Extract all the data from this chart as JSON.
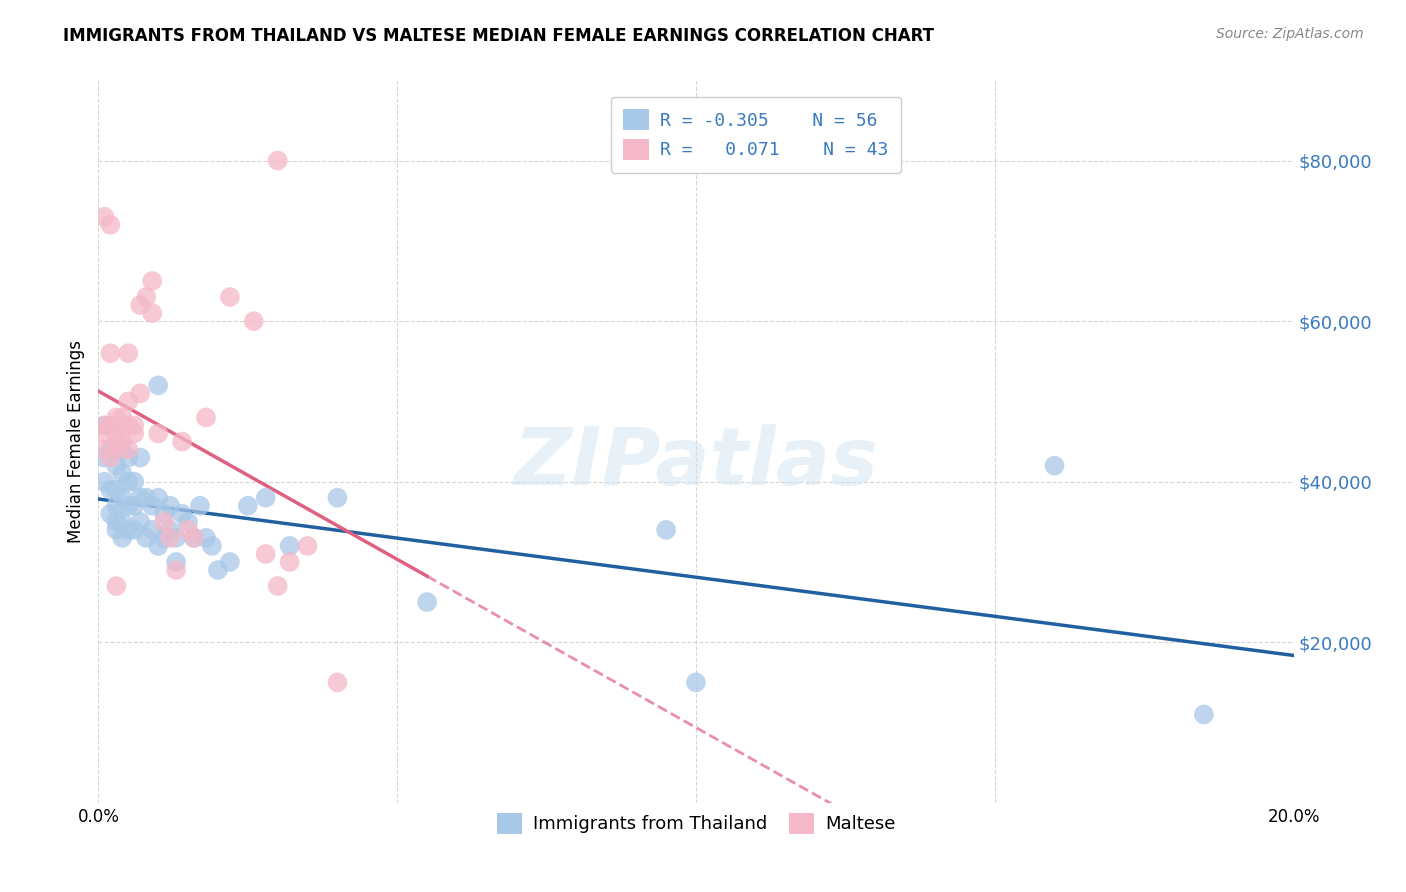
{
  "title": "IMMIGRANTS FROM THAILAND VS MALTESE MEDIAN FEMALE EARNINGS CORRELATION CHART",
  "source": "Source: ZipAtlas.com",
  "ylabel": "Median Female Earnings",
  "xlim": [
    0.0,
    0.2
  ],
  "ylim": [
    0,
    90000
  ],
  "yticks": [
    20000,
    40000,
    60000,
    80000
  ],
  "ytick_labels": [
    "$20,000",
    "$40,000",
    "$60,000",
    "$80,000"
  ],
  "xticks": [
    0.0,
    0.05,
    0.1,
    0.15,
    0.2
  ],
  "xtick_labels": [
    "0.0%",
    "",
    "",
    "",
    "20.0%"
  ],
  "color_blue": "#a8c8e8",
  "color_pink": "#f4b8c8",
  "color_blue_text": "#3a7abf",
  "trendline_blue": "#2060a0",
  "trendline_pink": "#e06080",
  "watermark": "ZIPatlas",
  "blue_points_x": [
    0.001,
    0.001,
    0.001,
    0.002,
    0.002,
    0.002,
    0.003,
    0.003,
    0.003,
    0.003,
    0.003,
    0.004,
    0.004,
    0.004,
    0.004,
    0.004,
    0.005,
    0.005,
    0.005,
    0.005,
    0.006,
    0.006,
    0.006,
    0.007,
    0.007,
    0.007,
    0.008,
    0.008,
    0.009,
    0.009,
    0.01,
    0.01,
    0.01,
    0.011,
    0.011,
    0.012,
    0.012,
    0.013,
    0.013,
    0.014,
    0.015,
    0.016,
    0.017,
    0.018,
    0.019,
    0.02,
    0.022,
    0.025,
    0.028,
    0.032,
    0.04,
    0.055,
    0.095,
    0.1,
    0.16,
    0.185
  ],
  "blue_points_y": [
    47000,
    43000,
    40000,
    44000,
    39000,
    36000,
    42000,
    39000,
    37000,
    35000,
    34000,
    44000,
    41000,
    38000,
    35000,
    33000,
    43000,
    40000,
    37000,
    34000,
    40000,
    37000,
    34000,
    43000,
    38000,
    35000,
    38000,
    33000,
    37000,
    34000,
    52000,
    38000,
    32000,
    36000,
    33000,
    37000,
    34000,
    33000,
    30000,
    36000,
    35000,
    33000,
    37000,
    33000,
    32000,
    29000,
    30000,
    37000,
    38000,
    32000,
    38000,
    25000,
    34000,
    15000,
    42000,
    11000
  ],
  "pink_points_x": [
    0.001,
    0.001,
    0.001,
    0.002,
    0.002,
    0.002,
    0.003,
    0.003,
    0.003,
    0.003,
    0.003,
    0.004,
    0.004,
    0.004,
    0.005,
    0.005,
    0.005,
    0.006,
    0.006,
    0.007,
    0.007,
    0.008,
    0.009,
    0.009,
    0.01,
    0.011,
    0.012,
    0.013,
    0.014,
    0.015,
    0.016,
    0.018,
    0.022,
    0.026,
    0.028,
    0.03,
    0.032,
    0.035,
    0.04,
    0.001,
    0.002,
    0.005,
    0.03
  ],
  "pink_points_y": [
    47000,
    46000,
    44000,
    56000,
    47000,
    43000,
    48000,
    46000,
    45000,
    44000,
    27000,
    48000,
    47000,
    45000,
    50000,
    47000,
    44000,
    47000,
    46000,
    51000,
    62000,
    63000,
    65000,
    61000,
    46000,
    35000,
    33000,
    29000,
    45000,
    34000,
    33000,
    48000,
    63000,
    60000,
    31000,
    27000,
    30000,
    32000,
    15000,
    73000,
    72000,
    56000,
    80000
  ]
}
